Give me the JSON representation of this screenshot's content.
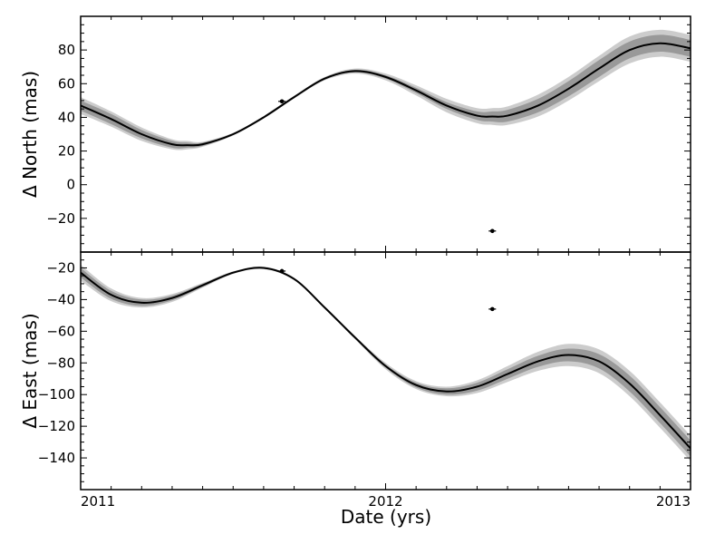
{
  "chart_data": {
    "type": "line",
    "xlabel": "Date (yrs)",
    "xlim": [
      2011,
      2013
    ],
    "xticks": [
      2011,
      2012,
      2013
    ],
    "xtick_labels": [
      "2011",
      "2012",
      "2013"
    ],
    "panels": [
      {
        "ylabel": "Δ North (mas)",
        "ylim": [
          -40,
          100
        ],
        "yticks": [
          -20,
          0,
          20,
          40,
          60,
          80
        ],
        "ytick_labels": [
          "−20",
          "0",
          "20",
          "40",
          "60",
          "80"
        ],
        "model_curve": {
          "x": [
            2011.0,
            2011.1,
            2011.2,
            2011.3,
            2011.35,
            2011.4,
            2011.5,
            2011.6,
            2011.7,
            2011.8,
            2011.9,
            2012.0,
            2012.1,
            2012.2,
            2012.3,
            2012.35,
            2012.4,
            2012.5,
            2012.6,
            2012.7,
            2012.8,
            2012.9,
            2013.0
          ],
          "y": [
            47,
            39,
            30,
            24,
            23.5,
            24,
            30,
            40,
            52,
            63,
            67.5,
            64,
            56,
            47,
            41,
            40.5,
            41,
            47,
            57,
            69,
            80,
            84,
            81
          ],
          "band_inner": [
            3,
            3,
            2.5,
            2,
            1.5,
            1,
            0.5,
            0.5,
            0.5,
            0.5,
            0.8,
            1,
            1.5,
            2,
            2.5,
            3,
            3.5,
            4,
            4.5,
            5,
            5,
            5,
            5
          ],
          "band_outer": [
            5,
            4.5,
            4,
            3,
            2.5,
            1.5,
            0.8,
            0.8,
            0.8,
            1,
            1.5,
            2,
            3,
            4,
            4.5,
            5,
            5.5,
            6.5,
            7,
            7.5,
            8,
            8,
            8
          ]
        },
        "points": [
          {
            "x": 2011.66,
            "y": 49.5,
            "xerr": 0.012
          },
          {
            "x": 2012.35,
            "y": -27.5,
            "xerr": 0.012
          }
        ]
      },
      {
        "ylabel": "Δ East (mas)",
        "ylim": [
          -160,
          -10
        ],
        "yticks": [
          -140,
          -120,
          -100,
          -80,
          -60,
          -40,
          -20
        ],
        "ytick_labels": [
          "−140",
          "−120",
          "−100",
          "−80",
          "−60",
          "−40",
          "−20"
        ],
        "model_curve": {
          "x": [
            2011.0,
            2011.1,
            2011.2,
            2011.3,
            2011.4,
            2011.5,
            2011.6,
            2011.7,
            2011.8,
            2011.9,
            2012.0,
            2012.1,
            2012.2,
            2012.3,
            2012.4,
            2012.5,
            2012.6,
            2012.7,
            2012.8,
            2012.9,
            2013.0
          ],
          "y": [
            -23,
            -37,
            -42,
            -39,
            -31,
            -23,
            -20,
            -27,
            -45,
            -64,
            -82,
            -94,
            -98,
            -95,
            -87,
            -79,
            -75,
            -79,
            -93,
            -113,
            -134
          ],
          "band_inner": [
            3,
            2.5,
            2,
            1.5,
            1,
            0.5,
            0.5,
            0.5,
            0.5,
            0.8,
            1,
            1.5,
            2,
            2.5,
            3,
            3.5,
            4,
            4.5,
            5,
            5,
            5
          ],
          "band_outer": [
            5,
            4,
            3,
            2.5,
            1.5,
            0.8,
            0.8,
            0.8,
            0.8,
            1,
            2,
            2.5,
            3,
            4,
            5,
            6,
            7,
            7.5,
            8,
            8,
            8
          ]
        },
        "points": [
          {
            "x": 2011.66,
            "y": -22,
            "xerr": 0.012
          },
          {
            "x": 2012.35,
            "y": -46,
            "xerr": 0.012
          }
        ]
      }
    ],
    "colors": {
      "curve": "#000000",
      "band_inner": "#999999",
      "band_outer": "#cccccc",
      "points": "#000000"
    }
  }
}
